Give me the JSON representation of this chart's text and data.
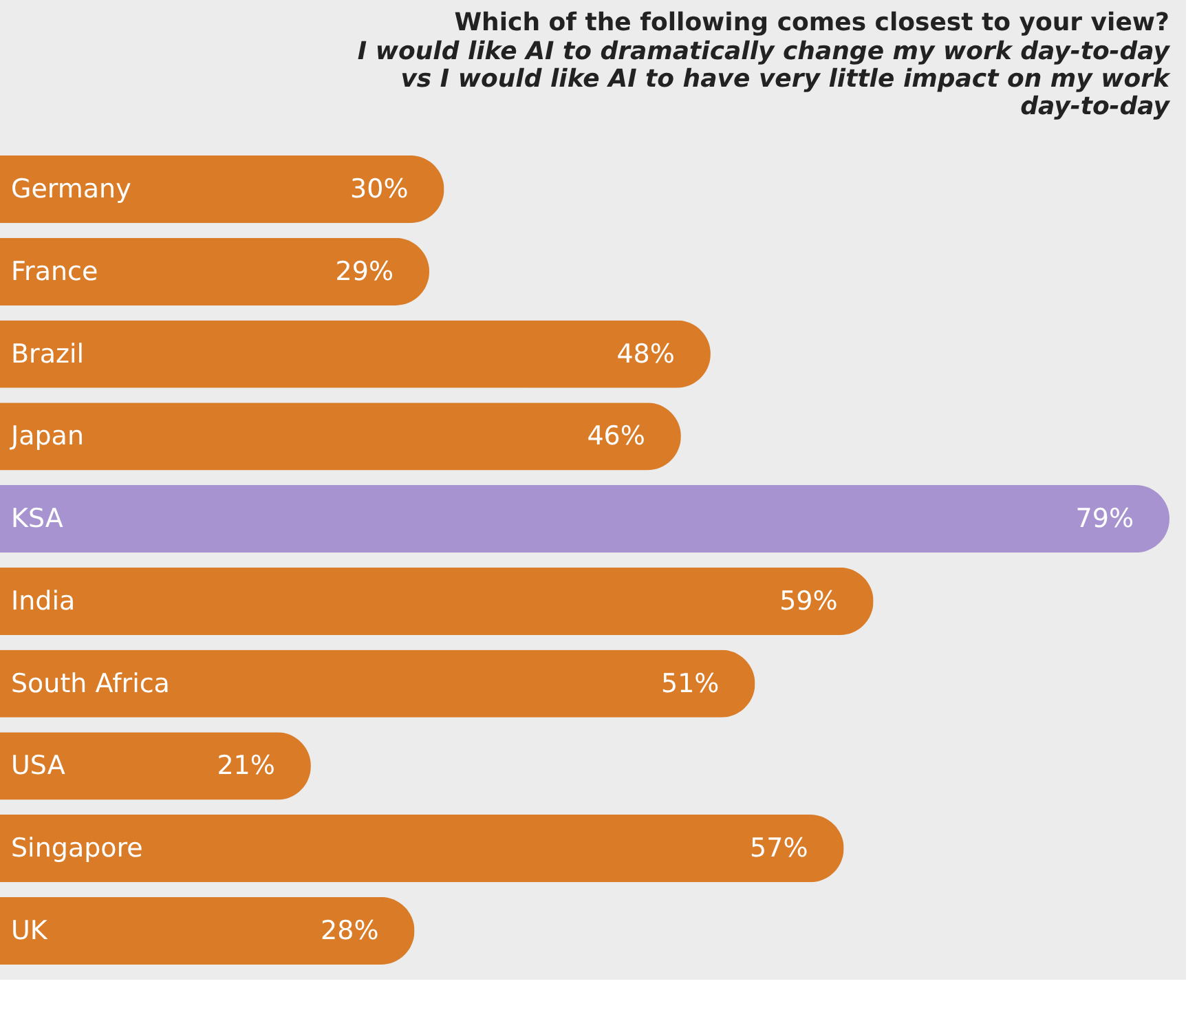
{
  "chart_data": {
    "type": "bar",
    "orientation": "horizontal",
    "title": "Which of the following comes closest to your view?",
    "subtitle": "I would like AI to dramatically change my work day-to-day vs I would like AI to have very little impact on my work day-to-day",
    "categories": [
      "Germany",
      "France",
      "Brazil",
      "Japan",
      "KSA",
      "India",
      "South Africa",
      "USA",
      "Singapore",
      "UK"
    ],
    "values": [
      30,
      29,
      48,
      46,
      79,
      59,
      51,
      21,
      57,
      28
    ],
    "colors": [
      "#d97b27",
      "#d97b27",
      "#d97b27",
      "#d97b27",
      "#a793d0",
      "#d97b27",
      "#d97b27",
      "#d97b27",
      "#d97b27",
      "#d97b27"
    ],
    "value_labels": [
      "30%",
      "29%",
      "48%",
      "46%",
      "79%",
      "59%",
      "51%",
      "21%",
      "57%",
      "28%"
    ]
  }
}
